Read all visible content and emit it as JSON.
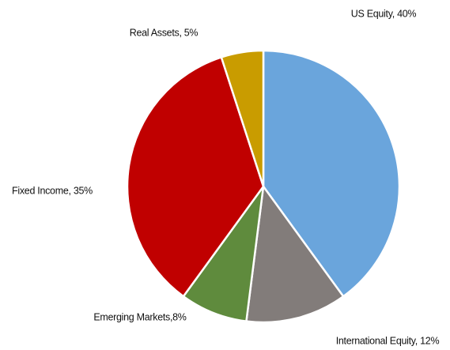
{
  "chart_data": {
    "type": "pie",
    "categories": [
      "US Equity, 40%",
      "International Equity, 12%",
      "Emerging Markets,8%",
      "Fixed Income, 35%",
      "Real Assets, 5%"
    ],
    "values": [
      40,
      12,
      8,
      35,
      5
    ],
    "colors": [
      "#6aa5dc",
      "#827c7a",
      "#5f8b3d",
      "#c00000",
      "#c99c00"
    ]
  }
}
